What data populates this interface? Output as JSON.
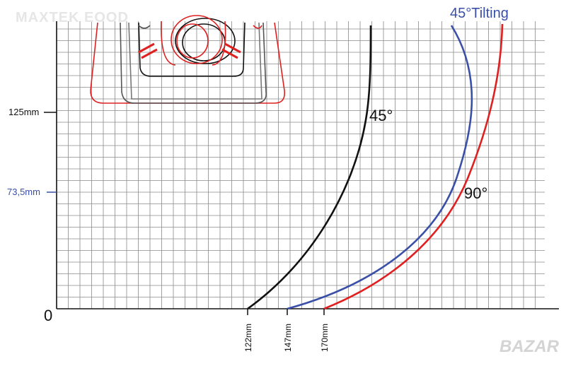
{
  "watermark": "MAXTEK EOOD",
  "watermark_corner": "BAZAR",
  "colors": {
    "grid": "#8a8a8a",
    "black": "#111111",
    "red": "#e02020",
    "blue": "#3a4fa8"
  },
  "diagram": {
    "curve_labels": {
      "deg45": "45°",
      "deg90": "90°",
      "tilt45": "45°Tilting"
    },
    "y_labels": [
      {
        "text": "125mm",
        "color": "#111111"
      },
      {
        "text": "73,5mm",
        "color": "#3a4fa8"
      }
    ],
    "origin": "0",
    "x_labels": [
      {
        "text": "122mm"
      },
      {
        "text": "147mm"
      },
      {
        "text": "170mm"
      }
    ]
  }
}
